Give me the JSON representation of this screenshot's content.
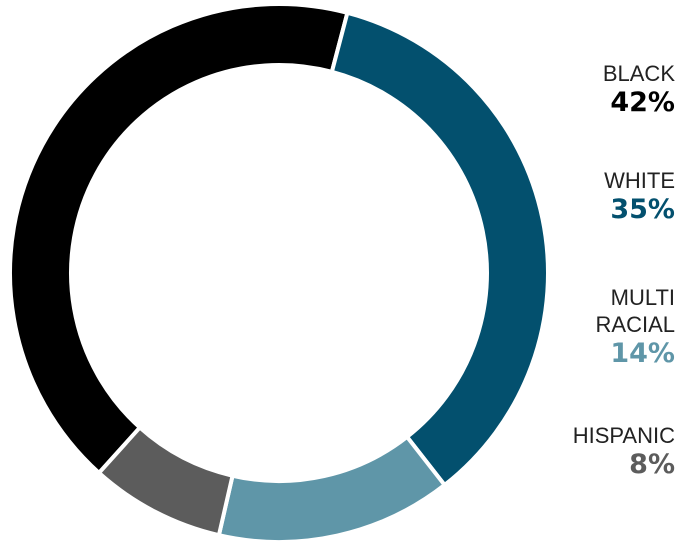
{
  "chart_data": {
    "type": "pie",
    "donut": true,
    "categories": [
      "BLACK",
      "WHITE",
      "MULTI RACIAL",
      "HISPANIC"
    ],
    "values": [
      42,
      35,
      14,
      8
    ],
    "value_labels": [
      "42%",
      "35%",
      "14%",
      "8%"
    ],
    "legend_lines": [
      [
        "BLACK"
      ],
      [
        "WHITE"
      ],
      [
        "MULTI",
        "RACIAL"
      ],
      [
        "HISPANIC"
      ]
    ],
    "colors": [
      "#000000",
      "#03506e",
      "#5f96a8",
      "#5c5c5c"
    ],
    "value_colors": [
      "#000000",
      "#03506e",
      "#5f96a8",
      "#5c5c5c"
    ],
    "legend_placement": "right"
  }
}
